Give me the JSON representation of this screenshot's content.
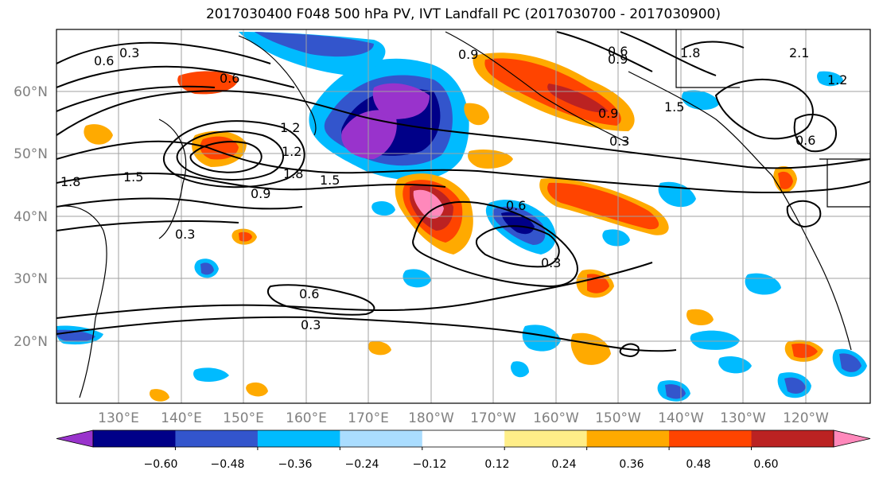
{
  "title": "2017030400 F048 500 hPa PV, IVT Landfall PC (2017030700 - 2017030900)",
  "lat_labels": [
    "60°N",
    "50°N",
    "40°N",
    "30°N",
    "20°N"
  ],
  "lon_labels": [
    "130°E",
    "140°E",
    "150°E",
    "160°E",
    "170°E",
    "180°W",
    "170°W",
    "160°W",
    "150°W",
    "140°W",
    "130°W",
    "120°W"
  ],
  "colorbar": {
    "tick_labels": [
      "−0.60",
      "−0.48",
      "−0.36",
      "−0.24",
      "−0.12",
      "0.12",
      "0.24",
      "0.36",
      "0.48",
      "0.60"
    ],
    "colors": [
      "#9933cc",
      "#000088",
      "#3355cc",
      "#00bbff",
      "#aaddff",
      "#ffffff",
      "#ffee88",
      "#ffaa00",
      "#ff4400",
      "#bb2222",
      "#ff88bb"
    ]
  },
  "contour_labels": [
    "0.6",
    "0.3",
    "0.6",
    "1.2",
    "1.8",
    "1.5",
    "0.9",
    "0.3",
    "1.2",
    "1.8",
    "1.5",
    "0.9",
    "0.6",
    "0.9",
    "1.5",
    "0.9",
    "0.3",
    "0.6",
    "1.2",
    "1.8",
    "2.1",
    "0.6",
    "0.3",
    "0.6",
    "0.3"
  ]
}
